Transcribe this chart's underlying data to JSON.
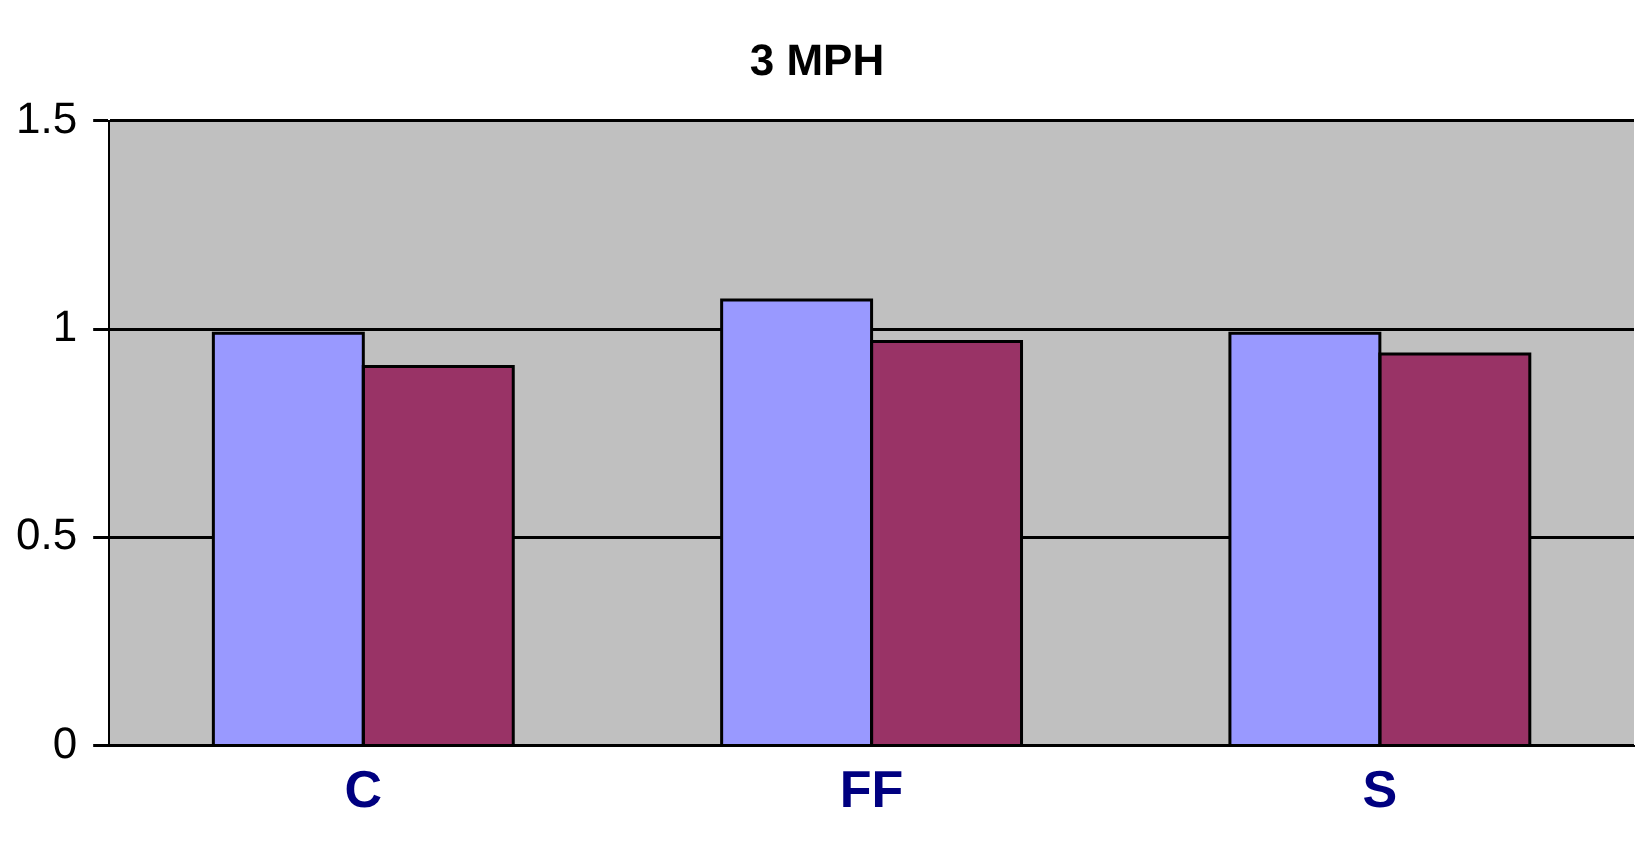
{
  "chart_data": {
    "type": "bar",
    "title": "3 MPH",
    "categories": [
      "C",
      "FF",
      "S"
    ],
    "series": [
      {
        "color": "#9999ff",
        "values": [
          0.99,
          1.07,
          0.99
        ]
      },
      {
        "color": "#993366",
        "values": [
          0.91,
          0.97,
          0.94
        ]
      }
    ],
    "ylim": [
      0,
      1.5
    ],
    "yticks": [
      0,
      0.5,
      1,
      1.5
    ],
    "grid": "y",
    "legend": false
  }
}
